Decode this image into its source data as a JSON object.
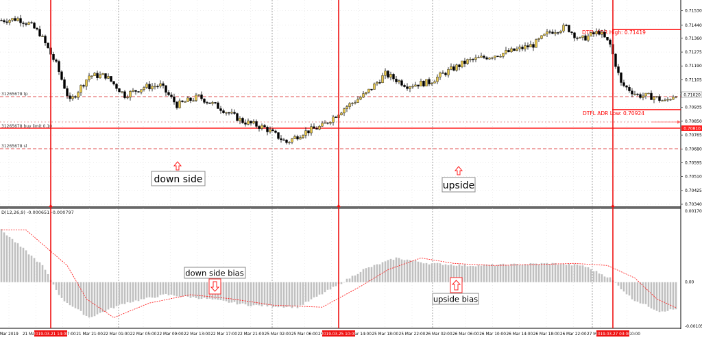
{
  "price_axis": {
    "labels": [
      "0.71530",
      "0.71440",
      "0.71360",
      "0.71275",
      "0.71190",
      "0.71105",
      "0.71020",
      "0.70935",
      "0.70850",
      "0.70765",
      "0.70680",
      "0.70595",
      "0.70510",
      "0.70425",
      "0.70340"
    ],
    "current_price": "0.71020",
    "buy_limit_price": "0.70810"
  },
  "indicator_axis": {
    "labels": [
      "0.001703",
      "0.00",
      "-0.001056"
    ]
  },
  "time_axis": {
    "labels": [
      "Mar 2019",
      "21 Mar 09:00",
      "21 Mar 17:00",
      "21 Mar 21:00",
      "22 Mar 01:00",
      "22 Mar 05:00",
      "22 Mar 09:00",
      "22 Mar 13:00",
      "22 Mar 17:00",
      "22 Mar 21:00",
      "25 Mar 02:00",
      "25 Mar 06:00",
      "25 Mar 10:00",
      "25 Mar 14:00",
      "25 Mar 18:00",
      "25 Mar 22:00",
      "26 Mar 02:00",
      "26 Mar 06:00",
      "26 Mar 10:00",
      "26 Mar 14:00",
      "26 Mar 18:00",
      "26 Mar 22:00",
      "27 Mar 06:00",
      "27 Mar 10:00"
    ],
    "markers": [
      "2019.03.21 14:00",
      "2019.03.25 10:00",
      "2019.03.27 03:00"
    ]
  },
  "chart_lines": {
    "tp_label": "31265678 tp",
    "buy_limit_label": "31265678 buy limit 0.10",
    "sl_label": "31265678 sl",
    "adr_high_label": "DTFL ADR High: 0.71419",
    "adr_low_label": "DTFL ADR Low: 0.70924"
  },
  "indicator_label": "D(12,26,9) -0.000651 -0.000797",
  "annotations": {
    "down_side": "down side",
    "upside": "upside",
    "down_side_bias": "down side bias",
    "upside_bias": "upside bias"
  },
  "colors": {
    "bull": "#e8c84a",
    "bear": "#000000",
    "marker": "#ee1111",
    "level": "#ff0000",
    "histogram": "#c0c0c0",
    "signal": "#ff2020"
  },
  "chart_data": {
    "type": "candlestick",
    "timeframe_note": "",
    "price_range": [
      0.7034,
      0.7157
    ],
    "close_path_keypoints": [
      {
        "t": 0,
        "p": 0.7147
      },
      {
        "t": 6,
        "p": 0.7148
      },
      {
        "t": 10,
        "p": 0.7145
      },
      {
        "t": 14,
        "p": 0.7139
      },
      {
        "t": 20,
        "p": 0.712
      },
      {
        "t": 25,
        "p": 0.7097
      },
      {
        "t": 32,
        "p": 0.7113
      },
      {
        "t": 38,
        "p": 0.7113
      },
      {
        "t": 45,
        "p": 0.7101
      },
      {
        "t": 52,
        "p": 0.7106
      },
      {
        "t": 58,
        "p": 0.7107
      },
      {
        "t": 64,
        "p": 0.7095
      },
      {
        "t": 72,
        "p": 0.71
      },
      {
        "t": 80,
        "p": 0.7093
      },
      {
        "t": 88,
        "p": 0.7085
      },
      {
        "t": 96,
        "p": 0.7081
      },
      {
        "t": 104,
        "p": 0.7072
      },
      {
        "t": 110,
        "p": 0.7078
      },
      {
        "t": 117,
        "p": 0.7082
      },
      {
        "t": 125,
        "p": 0.7093
      },
      {
        "t": 133,
        "p": 0.7102
      },
      {
        "t": 140,
        "p": 0.7114
      },
      {
        "t": 148,
        "p": 0.7107
      },
      {
        "t": 156,
        "p": 0.7109
      },
      {
        "t": 162,
        "p": 0.7115
      },
      {
        "t": 170,
        "p": 0.7122
      },
      {
        "t": 178,
        "p": 0.7125
      },
      {
        "t": 186,
        "p": 0.7128
      },
      {
        "t": 194,
        "p": 0.7132
      },
      {
        "t": 200,
        "p": 0.714
      },
      {
        "t": 206,
        "p": 0.7143
      },
      {
        "t": 211,
        "p": 0.7135
      },
      {
        "t": 218,
        "p": 0.714
      },
      {
        "t": 222,
        "p": 0.7132
      },
      {
        "t": 226,
        "p": 0.7108
      },
      {
        "t": 232,
        "p": 0.7101
      },
      {
        "t": 238,
        "p": 0.71
      },
      {
        "t": 242,
        "p": 0.7097
      },
      {
        "t": 246,
        "p": 0.7102
      }
    ],
    "macd_keypoints": [
      {
        "t": 0,
        "v": 0.00125
      },
      {
        "t": 15,
        "v": 0.0004
      },
      {
        "t": 22,
        "v": -0.0004
      },
      {
        "t": 32,
        "v": -0.00085
      },
      {
        "t": 45,
        "v": -0.0005
      },
      {
        "t": 60,
        "v": -0.0003
      },
      {
        "t": 75,
        "v": -0.0004
      },
      {
        "t": 90,
        "v": -0.00055
      },
      {
        "t": 108,
        "v": -0.0006
      },
      {
        "t": 122,
        "v": -0.0001
      },
      {
        "t": 132,
        "v": 0.0003
      },
      {
        "t": 144,
        "v": 0.00058
      },
      {
        "t": 156,
        "v": 0.00045
      },
      {
        "t": 170,
        "v": 0.0004
      },
      {
        "t": 185,
        "v": 0.00042
      },
      {
        "t": 200,
        "v": 0.00045
      },
      {
        "t": 212,
        "v": 0.0004
      },
      {
        "t": 222,
        "v": 0.0001
      },
      {
        "t": 230,
        "v": -0.0004
      },
      {
        "t": 240,
        "v": -0.0007
      },
      {
        "t": 246,
        "v": -0.00065
      }
    ],
    "indicator_range": [
      -0.001056,
      0.001703
    ]
  }
}
